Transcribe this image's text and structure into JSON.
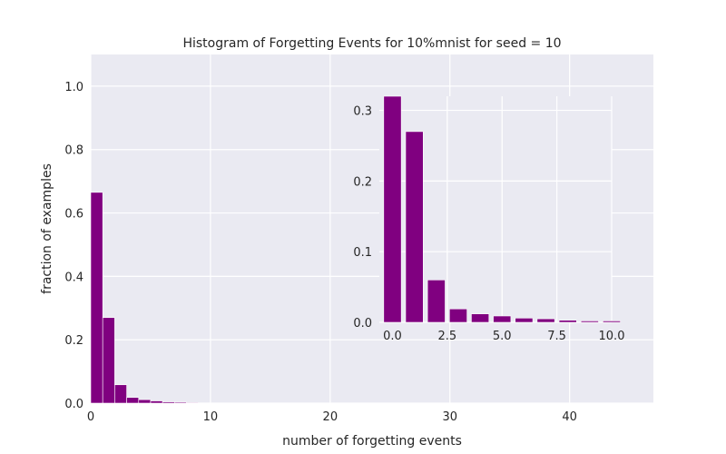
{
  "chart_data": [
    {
      "type": "bar",
      "title": "Histogram of Forgetting Events for 10%mnist for seed = 10",
      "xlabel": "number of forgetting events",
      "ylabel": "fraction of examples",
      "xlim": [
        0,
        47
      ],
      "ylim": [
        0,
        1.1
      ],
      "xticks": [
        "0",
        "10",
        "20",
        "30",
        "40"
      ],
      "yticks": [
        "0.0",
        "0.2",
        "0.4",
        "0.6",
        "0.8",
        "1.0"
      ],
      "grid": true,
      "bar_color": "#800080",
      "background_color": "#EAEAF2",
      "x": [
        0,
        1,
        2,
        3,
        4,
        5,
        6,
        7,
        8
      ],
      "values": [
        0.665,
        0.27,
        0.058,
        0.018,
        0.011,
        0.007,
        0.004,
        0.003,
        0.002
      ]
    },
    {
      "type": "bar",
      "role": "inset",
      "xlim": [
        -0.6,
        10
      ],
      "ylim": [
        0,
        0.32
      ],
      "xticks": [
        "0.0",
        "2.5",
        "5.0",
        "7.5",
        "10.0"
      ],
      "yticks": [
        "0.0",
        "0.1",
        "0.2",
        "0.3"
      ],
      "grid": true,
      "bar_color": "#800080",
      "x": [
        0,
        1,
        2,
        3,
        4,
        5,
        6,
        7,
        8,
        9,
        10
      ],
      "values": [
        0.32,
        0.27,
        0.06,
        0.019,
        0.012,
        0.009,
        0.006,
        0.005,
        0.003,
        0.002,
        0.002
      ]
    }
  ]
}
